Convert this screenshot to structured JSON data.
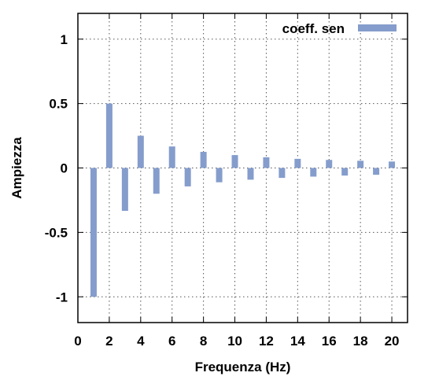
{
  "colors": {
    "bar": "#859dcc",
    "grid": "#555555",
    "axis": "#000000",
    "background": "#ffffff"
  },
  "chart_data": {
    "type": "bar",
    "title": "",
    "xlabel": "Frequenza (Hz)",
    "ylabel": "Ampiezza",
    "xlim": [
      0,
      21
    ],
    "ylim": [
      -1.2,
      1.2
    ],
    "x_ticks": [
      0,
      2,
      4,
      6,
      8,
      10,
      12,
      14,
      16,
      18,
      20
    ],
    "y_ticks": [
      -1,
      -0.5,
      0,
      0.5,
      1
    ],
    "y_tick_labels": [
      "-1",
      "-0.5",
      "0",
      "0.5",
      "1"
    ],
    "grid": true,
    "legend_position": "top-right",
    "series": [
      {
        "name": "coeff. sen",
        "color": "#859dcc",
        "x": [
          1,
          2,
          3,
          4,
          5,
          6,
          7,
          8,
          9,
          10,
          11,
          12,
          13,
          14,
          15,
          16,
          17,
          18,
          19,
          20
        ],
        "values": [
          -1,
          0.5,
          -0.333,
          0.25,
          -0.2,
          0.167,
          -0.143,
          0.125,
          -0.111,
          0.1,
          -0.091,
          0.083,
          -0.077,
          0.071,
          -0.067,
          0.0625,
          -0.059,
          0.056,
          -0.053,
          0.05
        ]
      }
    ]
  }
}
